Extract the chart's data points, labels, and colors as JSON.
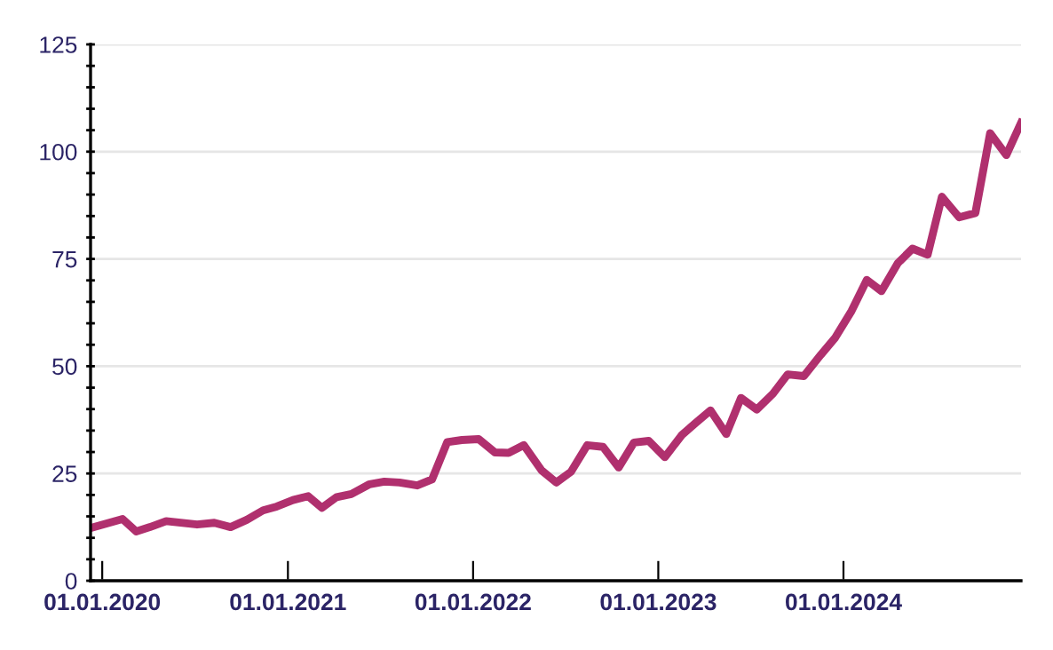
{
  "chart_data": {
    "type": "line",
    "x": [
      "2019-12-09",
      "2020-02-10",
      "2020-03-08",
      "2020-04-04",
      "2020-05-06",
      "2020-07-06",
      "2020-08-09",
      "2020-09-10",
      "2020-10-12",
      "2020-11-13",
      "2020-12-10",
      "2021-01-11",
      "2021-02-10",
      "2021-03-09",
      "2021-04-07",
      "2021-05-06",
      "2021-06-11",
      "2021-07-10",
      "2021-08-09",
      "2021-09-13",
      "2021-10-12",
      "2021-11-11",
      "2021-12-10",
      "2022-01-12",
      "2022-02-13",
      "2022-03-12",
      "2022-04-11",
      "2022-05-16",
      "2022-06-14",
      "2022-07-13",
      "2022-08-14",
      "2022-09-14",
      "2022-10-15",
      "2022-11-14",
      "2022-12-13",
      "2023-01-14",
      "2023-02-16",
      "2023-03-15",
      "2023-04-14",
      "2023-05-15",
      "2023-06-13",
      "2023-07-14",
      "2023-08-15",
      "2023-09-13",
      "2023-10-15",
      "2023-11-17",
      "2023-12-16",
      "2024-01-17",
      "2024-02-16",
      "2024-03-16",
      "2024-04-17",
      "2024-05-16",
      "2024-06-15",
      "2024-07-13",
      "2024-08-16",
      "2024-09-17",
      "2024-10-16",
      "2024-11-17",
      "2024-12-16"
    ],
    "series": [
      {
        "color": "#b0306e",
        "values": [
          12.3,
          14.4,
          11.5,
          12.5,
          13.9,
          13.1,
          13.5,
          12.5,
          14.2,
          16.4,
          17.3,
          18.8,
          19.7,
          17.0,
          19.5,
          20.2,
          22.5,
          23.1,
          22.9,
          22.2,
          23.6,
          32.3,
          32.8,
          33.0,
          29.9,
          29.8,
          31.6,
          25.7,
          22.9,
          25.4,
          31.6,
          31.2,
          26.4,
          32.2,
          32.6,
          28.8,
          33.9,
          36.7,
          39.7,
          34.2,
          42.6,
          39.9,
          43.6,
          48.1,
          47.7,
          52.6,
          56.7,
          62.9,
          70.1,
          67.5,
          74.0,
          77.4,
          76.0,
          89.5,
          84.7,
          85.7,
          104.3,
          99.2,
          106.7
        ]
      }
    ],
    "xlim": [
      "2019-12-09",
      "2024-12-16"
    ],
    "xticks": [
      {
        "value": "2020-01-01",
        "label": "01.01.2020"
      },
      {
        "value": "2021-01-01",
        "label": "01.01.2021"
      },
      {
        "value": "2022-01-01",
        "label": "01.01.2022"
      },
      {
        "value": "2023-01-01",
        "label": "01.01.2023"
      },
      {
        "value": "2024-01-01",
        "label": "01.01.2024"
      }
    ],
    "ylim": [
      0,
      125
    ],
    "yticks": [
      0,
      {
        "value": 5,
        "label": null
      },
      {
        "value": 10,
        "label": null
      },
      {
        "value": 15,
        "label": null
      },
      {
        "value": 20,
        "label": null
      },
      25,
      {
        "value": 30,
        "label": null
      },
      {
        "value": 35,
        "label": null
      },
      {
        "value": 40,
        "label": null
      },
      {
        "value": 45,
        "label": null
      },
      50,
      {
        "value": 55,
        "label": null
      },
      {
        "value": 60,
        "label": null
      },
      {
        "value": 65,
        "label": null
      },
      {
        "value": 70,
        "label": null
      },
      75,
      {
        "value": 80,
        "label": null
      },
      {
        "value": 85,
        "label": null
      },
      {
        "value": 90,
        "label": null
      },
      {
        "value": 95,
        "label": null
      },
      100,
      {
        "value": 105,
        "label": null
      },
      {
        "value": 110,
        "label": null
      },
      {
        "value": 115,
        "label": null
      },
      {
        "value": 120,
        "label": null
      },
      125
    ],
    "grid": "y",
    "marker": "none",
    "line_style": "solid",
    "legend": false
  }
}
